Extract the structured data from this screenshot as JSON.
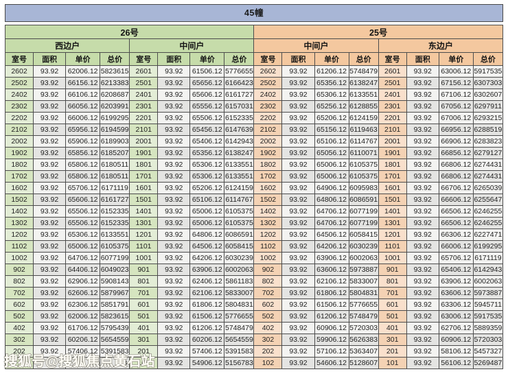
{
  "building_title": "45幢",
  "columns": [
    "室号",
    "面积",
    "单价",
    "总价"
  ],
  "colors": {
    "banner": "#a8b6d6",
    "unit_26_header": "#c6dcaa",
    "unit_25_header": "#f4c89f"
  },
  "watermark": "搜狐号@搜狐焦点黄石站",
  "obscured_row_note_visible_fragment": "743",
  "units": [
    {
      "label": "26号",
      "theme": "green",
      "sections": [
        {
          "side": "西边户",
          "rows": [
            [
              "2602",
              "93.92",
              "62006.12",
              "5823615"
            ],
            [
              "2502",
              "93.92",
              "66156.12",
              "6213383"
            ],
            [
              "2402",
              "93.92",
              "66106.12",
              "6208687"
            ],
            [
              "2302",
              "93.92",
              "66056.12",
              "6203991"
            ],
            [
              "2202",
              "93.92",
              "66006.12",
              "6199295"
            ],
            [
              "2102",
              "93.92",
              "65956.12",
              "6194599"
            ],
            [
              "2002",
              "93.92",
              "65906.12",
              "6189903"
            ],
            [
              "1902",
              "93.92",
              "65856.12",
              "6185207"
            ],
            [
              "1802",
              "93.92",
              "65806.12",
              "6180511"
            ],
            [
              "1702",
              "93.92",
              "65806.12",
              "6180511"
            ],
            [
              "1602",
              "93.92",
              "65706.12",
              "6171119"
            ],
            [
              "1502",
              "93.92",
              "65606.12",
              "6161727"
            ],
            [
              "1402",
              "93.92",
              "65506.12",
              "6152335"
            ],
            [
              "1302",
              "93.92",
              "65506.12",
              "6152335"
            ],
            [
              "1202",
              "93.92",
              "65306.12",
              "6133551"
            ],
            [
              "1102",
              "93.92",
              "65006.12",
              "6105375"
            ],
            [
              "1002",
              "93.92",
              "64706.12",
              "6077199"
            ],
            [
              "902",
              "93.92",
              "64406.12",
              "6049023"
            ],
            [
              "802",
              "93.92",
              "62906.12",
              "5908143"
            ],
            [
              "702",
              "93.92",
              "62606.12",
              "5879967"
            ],
            [
              "602",
              "93.92",
              "62306.12",
              "5851791"
            ],
            [
              "502",
              "93.92",
              "62006.12",
              "5823615"
            ],
            [
              "402",
              "93.92",
              "61706.12",
              "5795439"
            ],
            [
              "302",
              "93.92",
              "60206.12",
              "5654559"
            ],
            [
              "202",
              "93.92",
              "57406.12",
              "5391583"
            ],
            [
              "",
              "",
              "",
              "743"
            ]
          ]
        },
        {
          "side": "中间户",
          "rows": [
            [
              "2601",
              "93.92",
              "61506.12",
              "5776655"
            ],
            [
              "2501",
              "93.92",
              "65656.12",
              "6166423"
            ],
            [
              "2401",
              "93.92",
              "65606.12",
              "6161727"
            ],
            [
              "2301",
              "93.92",
              "65556.12",
              "6157031"
            ],
            [
              "2201",
              "93.92",
              "65506.12",
              "6152335"
            ],
            [
              "2101",
              "93.92",
              "65456.12",
              "6147639"
            ],
            [
              "2001",
              "93.92",
              "65406.12",
              "6142943"
            ],
            [
              "1901",
              "93.92",
              "65356.12",
              "6138247"
            ],
            [
              "1801",
              "93.92",
              "65306.12",
              "6133551"
            ],
            [
              "1701",
              "93.92",
              "65306.12",
              "6133551"
            ],
            [
              "1601",
              "93.92",
              "65206.12",
              "6124159"
            ],
            [
              "1501",
              "93.92",
              "65106.12",
              "6114767"
            ],
            [
              "1401",
              "93.92",
              "65006.12",
              "6105375"
            ],
            [
              "1301",
              "93.92",
              "65006.12",
              "6105375"
            ],
            [
              "1201",
              "93.92",
              "64806.12",
              "6086591"
            ],
            [
              "1101",
              "93.92",
              "64506.12",
              "6058415"
            ],
            [
              "1001",
              "93.92",
              "64206.12",
              "6030239"
            ],
            [
              "901",
              "93.92",
              "63906.12",
              "6002063"
            ],
            [
              "801",
              "93.92",
              "62406.12",
              "5861183"
            ],
            [
              "701",
              "93.92",
              "62106.12",
              "5833007"
            ],
            [
              "601",
              "93.92",
              "61806.12",
              "5804831"
            ],
            [
              "501",
              "93.92",
              "61506.12",
              "5776655"
            ],
            [
              "401",
              "93.92",
              "61206.12",
              "5748479"
            ],
            [
              "301",
              "93.92",
              "60206.12",
              "5654559"
            ],
            [
              "201",
              "93.92",
              "57406.12",
              "5391583"
            ],
            [
              "101",
              "93.92",
              "54906.12",
              "5156783"
            ]
          ]
        }
      ]
    },
    {
      "label": "25号",
      "theme": "peach",
      "sections": [
        {
          "side": "中间户",
          "rows": [
            [
              "2602",
              "93.92",
              "61206.12",
              "5748479"
            ],
            [
              "2502",
              "93.92",
              "65356.12",
              "6138247"
            ],
            [
              "2402",
              "93.92",
              "65306.12",
              "6133551"
            ],
            [
              "2302",
              "93.92",
              "65256.12",
              "6128855"
            ],
            [
              "2202",
              "93.92",
              "65206.12",
              "6124159"
            ],
            [
              "2102",
              "93.92",
              "65156.12",
              "6119463"
            ],
            [
              "2002",
              "93.92",
              "65106.12",
              "6114767"
            ],
            [
              "1902",
              "93.92",
              "65056.12",
              "6110071"
            ],
            [
              "1802",
              "93.92",
              "65006.12",
              "6105375"
            ],
            [
              "1702",
              "93.92",
              "65006.12",
              "6105375"
            ],
            [
              "1602",
              "93.92",
              "64906.12",
              "6095983"
            ],
            [
              "1502",
              "93.92",
              "64806.12",
              "6086591"
            ],
            [
              "1402",
              "93.92",
              "64706.12",
              "6077199"
            ],
            [
              "1302",
              "93.92",
              "64706.12",
              "6077199"
            ],
            [
              "1202",
              "93.92",
              "64506.12",
              "6058415"
            ],
            [
              "1102",
              "93.92",
              "64206.12",
              "6030239"
            ],
            [
              "1002",
              "93.92",
              "63906.12",
              "6002063"
            ],
            [
              "902",
              "93.92",
              "63606.12",
              "5973887"
            ],
            [
              "802",
              "93.92",
              "62106.12",
              "5833007"
            ],
            [
              "702",
              "93.92",
              "61806.12",
              "5804831"
            ],
            [
              "602",
              "93.92",
              "61506.12",
              "5776655"
            ],
            [
              "502",
              "93.92",
              "61206.12",
              "5748479"
            ],
            [
              "402",
              "93.92",
              "60906.12",
              "5720303"
            ],
            [
              "302",
              "93.92",
              "59906.12",
              "5626383"
            ],
            [
              "202",
              "93.92",
              "57106.12",
              "5363407"
            ],
            [
              "102",
              "93.92",
              "54606.12",
              "5128607"
            ]
          ]
        },
        {
          "side": "东边户",
          "rows": [
            [
              "2601",
              "93.92",
              "63006.12",
              "5917535"
            ],
            [
              "2501",
              "93.92",
              "67156.12",
              "6307303"
            ],
            [
              "2401",
              "93.92",
              "67106.12",
              "6302607"
            ],
            [
              "2301",
              "93.92",
              "67056.12",
              "6297911"
            ],
            [
              "2201",
              "93.92",
              "67006.12",
              "6293215"
            ],
            [
              "2101",
              "93.92",
              "66956.12",
              "6288519"
            ],
            [
              "2001",
              "93.92",
              "66906.12",
              "6283823"
            ],
            [
              "1901",
              "93.92",
              "66856.12",
              "6279127"
            ],
            [
              "1801",
              "93.92",
              "66806.12",
              "6274431"
            ],
            [
              "1701",
              "93.92",
              "66806.12",
              "6274431"
            ],
            [
              "1601",
              "93.92",
              "66706.12",
              "6265039"
            ],
            [
              "1501",
              "93.92",
              "66606.12",
              "6255647"
            ],
            [
              "1401",
              "93.92",
              "66506.12",
              "6246255"
            ],
            [
              "1301",
              "93.92",
              "66506.12",
              "6246255"
            ],
            [
              "1201",
              "93.92",
              "66306.12",
              "6227471"
            ],
            [
              "1101",
              "93.92",
              "66006.12",
              "6199295"
            ],
            [
              "1001",
              "93.92",
              "65706.12",
              "6171119"
            ],
            [
              "901",
              "93.92",
              "65406.12",
              "6142943"
            ],
            [
              "801",
              "93.92",
              "63906.12",
              "6002063"
            ],
            [
              "701",
              "93.92",
              "63606.12",
              "5973887"
            ],
            [
              "601",
              "93.92",
              "63306.12",
              "5945711"
            ],
            [
              "501",
              "93.92",
              "63006.12",
              "5917535"
            ],
            [
              "401",
              "93.92",
              "62706.12",
              "5889359"
            ],
            [
              "301",
              "93.92",
              "60906.12",
              "5720303"
            ],
            [
              "201",
              "93.92",
              "58106.12",
              "5457327"
            ],
            [
              "101",
              "93.92",
              "56106.12",
              "5269487"
            ]
          ]
        }
      ]
    }
  ]
}
